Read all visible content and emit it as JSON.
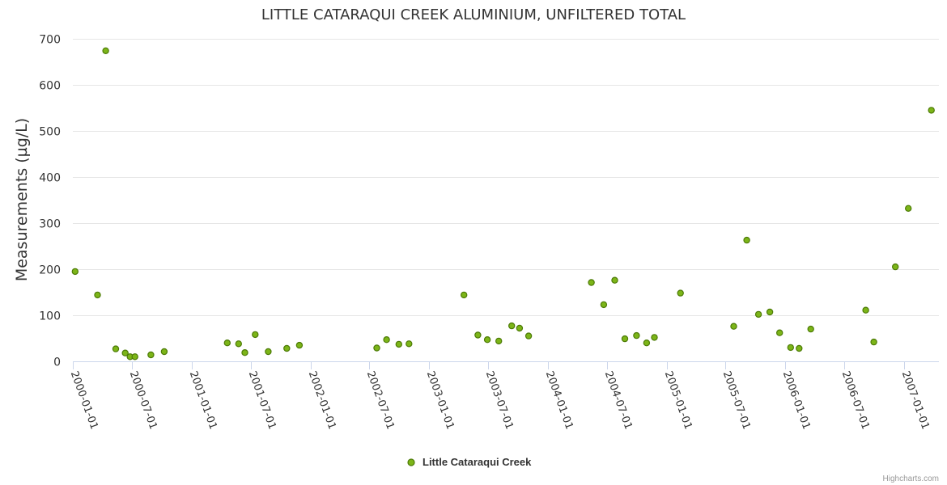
{
  "chart_data": {
    "type": "scatter",
    "title": "LITTLE CATARAQUI CREEK ALUMINIUM, UNFILTERED TOTAL",
    "xlabel": "",
    "ylabel": "Measurements (µg/L)",
    "ylim": [
      0,
      700
    ],
    "yticks": [
      0,
      100,
      200,
      300,
      400,
      500,
      600,
      700
    ],
    "xlim": [
      "2000-01-01",
      "2007-03-01"
    ],
    "xticks": [
      "2000-01-01",
      "2000-07-01",
      "2001-01-01",
      "2001-07-01",
      "2002-01-01",
      "2002-07-01",
      "2003-01-01",
      "2003-07-01",
      "2004-01-01",
      "2004-07-01",
      "2005-01-01",
      "2005-07-01",
      "2006-01-01",
      "2006-07-01",
      "2007-01-01"
    ],
    "grid": true,
    "legend_position": "bottom-center",
    "series": [
      {
        "name": "Little Cataraqui Creek",
        "color": "#7cb518",
        "points": [
          {
            "x": "2000-01-08",
            "y": 195
          },
          {
            "x": "2000-03-17",
            "y": 144
          },
          {
            "x": "2000-04-11",
            "y": 674
          },
          {
            "x": "2000-05-12",
            "y": 27
          },
          {
            "x": "2000-06-10",
            "y": 18
          },
          {
            "x": "2000-06-25",
            "y": 10
          },
          {
            "x": "2000-07-10",
            "y": 10
          },
          {
            "x": "2000-08-28",
            "y": 14
          },
          {
            "x": "2000-10-08",
            "y": 21
          },
          {
            "x": "2001-04-20",
            "y": 40
          },
          {
            "x": "2001-05-25",
            "y": 38
          },
          {
            "x": "2001-06-13",
            "y": 19
          },
          {
            "x": "2001-07-15",
            "y": 58
          },
          {
            "x": "2001-08-24",
            "y": 21
          },
          {
            "x": "2001-10-20",
            "y": 28
          },
          {
            "x": "2001-11-28",
            "y": 35
          },
          {
            "x": "2002-07-24",
            "y": 29
          },
          {
            "x": "2002-08-23",
            "y": 47
          },
          {
            "x": "2002-09-30",
            "y": 37
          },
          {
            "x": "2002-10-31",
            "y": 38
          },
          {
            "x": "2003-04-18",
            "y": 144
          },
          {
            "x": "2003-05-31",
            "y": 57
          },
          {
            "x": "2003-06-29",
            "y": 47
          },
          {
            "x": "2003-08-03",
            "y": 44
          },
          {
            "x": "2003-09-12",
            "y": 77
          },
          {
            "x": "2003-10-06",
            "y": 72
          },
          {
            "x": "2003-11-03",
            "y": 55
          },
          {
            "x": "2004-05-14",
            "y": 171
          },
          {
            "x": "2004-06-21",
            "y": 123
          },
          {
            "x": "2004-07-25",
            "y": 176
          },
          {
            "x": "2004-08-25",
            "y": 49
          },
          {
            "x": "2004-09-30",
            "y": 56
          },
          {
            "x": "2004-10-31",
            "y": 40
          },
          {
            "x": "2004-11-24",
            "y": 52
          },
          {
            "x": "2005-02-12",
            "y": 148
          },
          {
            "x": "2005-07-26",
            "y": 76
          },
          {
            "x": "2005-09-04",
            "y": 263
          },
          {
            "x": "2005-10-10",
            "y": 102
          },
          {
            "x": "2005-11-14",
            "y": 107
          },
          {
            "x": "2005-12-14",
            "y": 62
          },
          {
            "x": "2006-01-17",
            "y": 30
          },
          {
            "x": "2006-02-12",
            "y": 28
          },
          {
            "x": "2006-03-20",
            "y": 70
          },
          {
            "x": "2006-09-05",
            "y": 111
          },
          {
            "x": "2006-09-30",
            "y": 42
          },
          {
            "x": "2006-12-05",
            "y": 205
          },
          {
            "x": "2007-01-14",
            "y": 332
          },
          {
            "x": "2007-03-26",
            "y": 545
          }
        ]
      }
    ]
  },
  "credits": "Highcharts.com"
}
